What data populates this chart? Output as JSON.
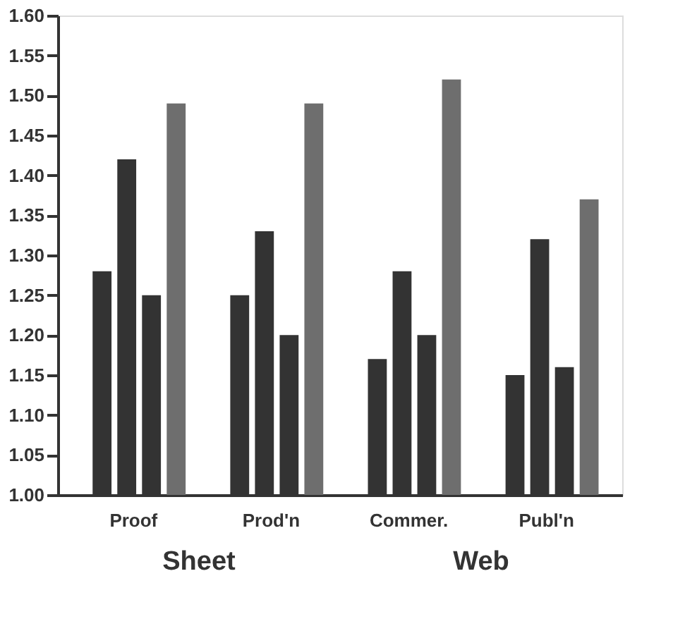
{
  "chart_data": {
    "type": "bar",
    "categories": [
      "Proof",
      "Prod'n",
      "Commer.",
      "Publ'n"
    ],
    "series": [
      {
        "color": "#333333",
        "values": [
          1.28,
          1.25,
          1.17,
          1.15
        ]
      },
      {
        "color": "#333333",
        "values": [
          1.42,
          1.33,
          1.28,
          1.32
        ]
      },
      {
        "color": "#333333",
        "values": [
          1.25,
          1.2,
          1.2,
          1.16
        ]
      },
      {
        "color": "#6e6e6e",
        "values": [
          1.49,
          1.49,
          1.52,
          1.37
        ]
      }
    ],
    "ylim": [
      1.0,
      1.6
    ],
    "yticks": [
      {
        "value": 1.0,
        "label": "1.00"
      },
      {
        "value": 1.05,
        "label": "1.05"
      },
      {
        "value": 1.1,
        "label": "1.10"
      },
      {
        "value": 1.15,
        "label": "1.15"
      },
      {
        "value": 1.2,
        "label": "1.20"
      },
      {
        "value": 1.25,
        "label": "1.25"
      },
      {
        "value": 1.3,
        "label": "1.30"
      },
      {
        "value": 1.35,
        "label": "1.35"
      },
      {
        "value": 1.4,
        "label": "1.40"
      },
      {
        "value": 1.45,
        "label": "1.45"
      },
      {
        "value": 1.5,
        "label": "1.50"
      },
      {
        "value": 1.55,
        "label": "1.55"
      },
      {
        "value": 1.6,
        "label": "1.60"
      }
    ],
    "annotations": [
      "Sheet",
      "Web"
    ],
    "grid": false,
    "legend": false
  }
}
